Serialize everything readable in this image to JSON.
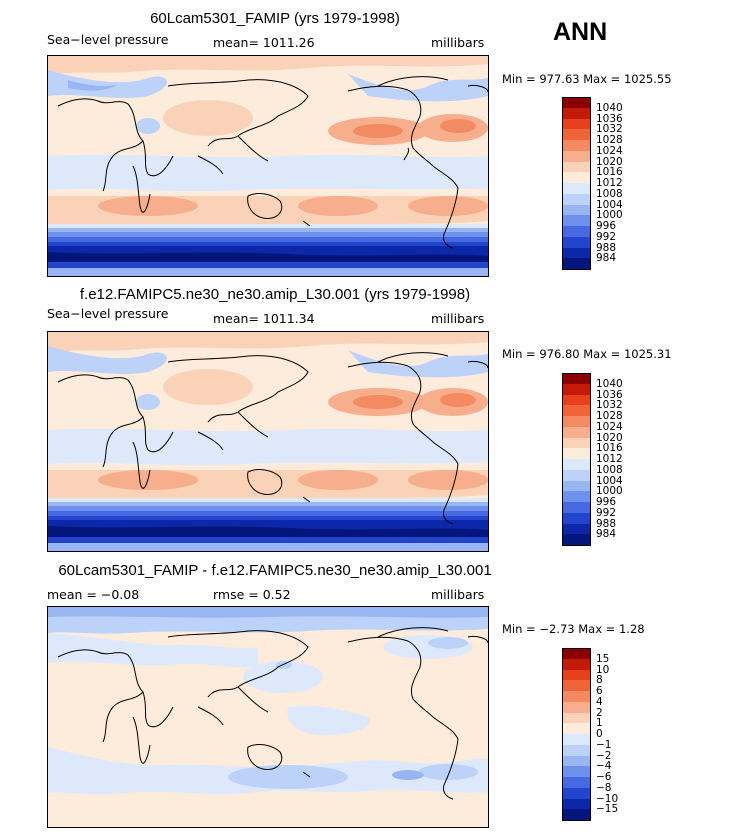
{
  "header": {
    "season": "ANN"
  },
  "panels": [
    {
      "title": "60Lcam5301_FAMIP (yrs 1979-1998)",
      "left": "Sea−level pressure",
      "center": "mean=  1011.26",
      "right": "millibars",
      "minmax": "Min = 977.63 Max = 1025.55",
      "levels": [
        "1040",
        "1036",
        "1032",
        "1028",
        "1024",
        "1020",
        "1016",
        "1012",
        "1008",
        "1004",
        "1000",
        "996",
        "992",
        "988",
        "984"
      ]
    },
    {
      "title": "f.e12.FAMIPC5.ne30_ne30.amip_L30.001 (yrs 1979-1998)",
      "left": "Sea−level pressure",
      "center": "mean=  1011.34",
      "right": "millibars",
      "minmax": "Min = 976.80 Max = 1025.31",
      "levels": [
        "1040",
        "1036",
        "1032",
        "1028",
        "1024",
        "1020",
        "1016",
        "1012",
        "1008",
        "1004",
        "1000",
        "996",
        "992",
        "988",
        "984"
      ]
    },
    {
      "title": "60Lcam5301_FAMIP - f.e12.FAMIPC5.ne30_ne30.amip_L30.001",
      "left": "mean =    −0.08",
      "center": "rmse =     0.52",
      "right": "millibars",
      "minmax": "Min =   −2.73 Max =    1.28",
      "levels": [
        "15",
        "10",
        "8",
        "6",
        "4",
        "2",
        "1",
        "0",
        "−1",
        "−2",
        "−4",
        "−6",
        "−8",
        "−10",
        "−15"
      ]
    }
  ],
  "colors": {
    "scale": [
      "#8a0000",
      "#c41a0a",
      "#e8401a",
      "#f0643a",
      "#f48a62",
      "#f7ae8c",
      "#fad2b8",
      "#fdebdc",
      "#dde9fb",
      "#bcd2f8",
      "#98b6f4",
      "#6f91ee",
      "#4669e2",
      "#2344cc",
      "#0c27a8",
      "#04167c"
    ]
  }
}
